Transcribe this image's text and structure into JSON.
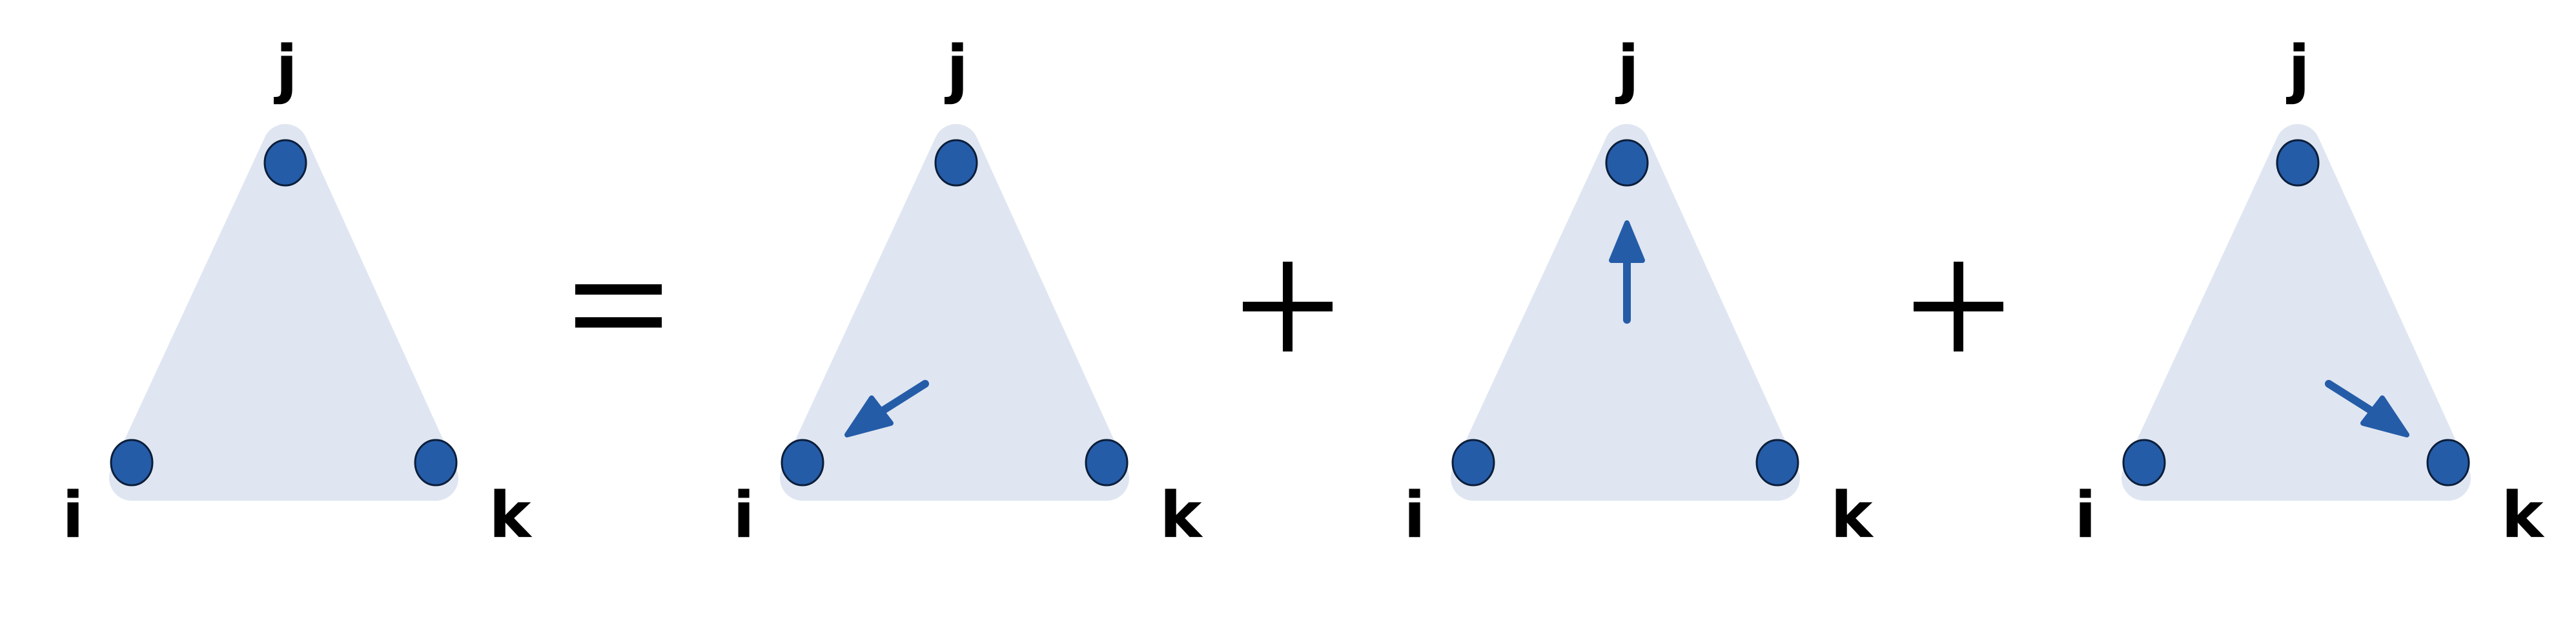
{
  "diagram": {
    "colors": {
      "triangle_fill": "#dfe6f1",
      "node_fill": "#255ca8",
      "node_outline": "#0b1e3a",
      "arrow": "#255ca8",
      "text": "#000000"
    },
    "terms": [
      {
        "labels": {
          "top": "j",
          "left": "i",
          "right": "k"
        },
        "arrow": "none"
      },
      {
        "labels": {
          "top": "j",
          "left": "i",
          "right": "k"
        },
        "arrow": "toward-i"
      },
      {
        "labels": {
          "top": "j",
          "left": "i",
          "right": "k"
        },
        "arrow": "toward-j"
      },
      {
        "labels": {
          "top": "j",
          "left": "i",
          "right": "k"
        },
        "arrow": "toward-k"
      }
    ],
    "operators": [
      {
        "symbol": "=",
        "name": "equals"
      },
      {
        "symbol": "+",
        "name": "plus"
      },
      {
        "symbol": "+",
        "name": "plus"
      }
    ]
  }
}
